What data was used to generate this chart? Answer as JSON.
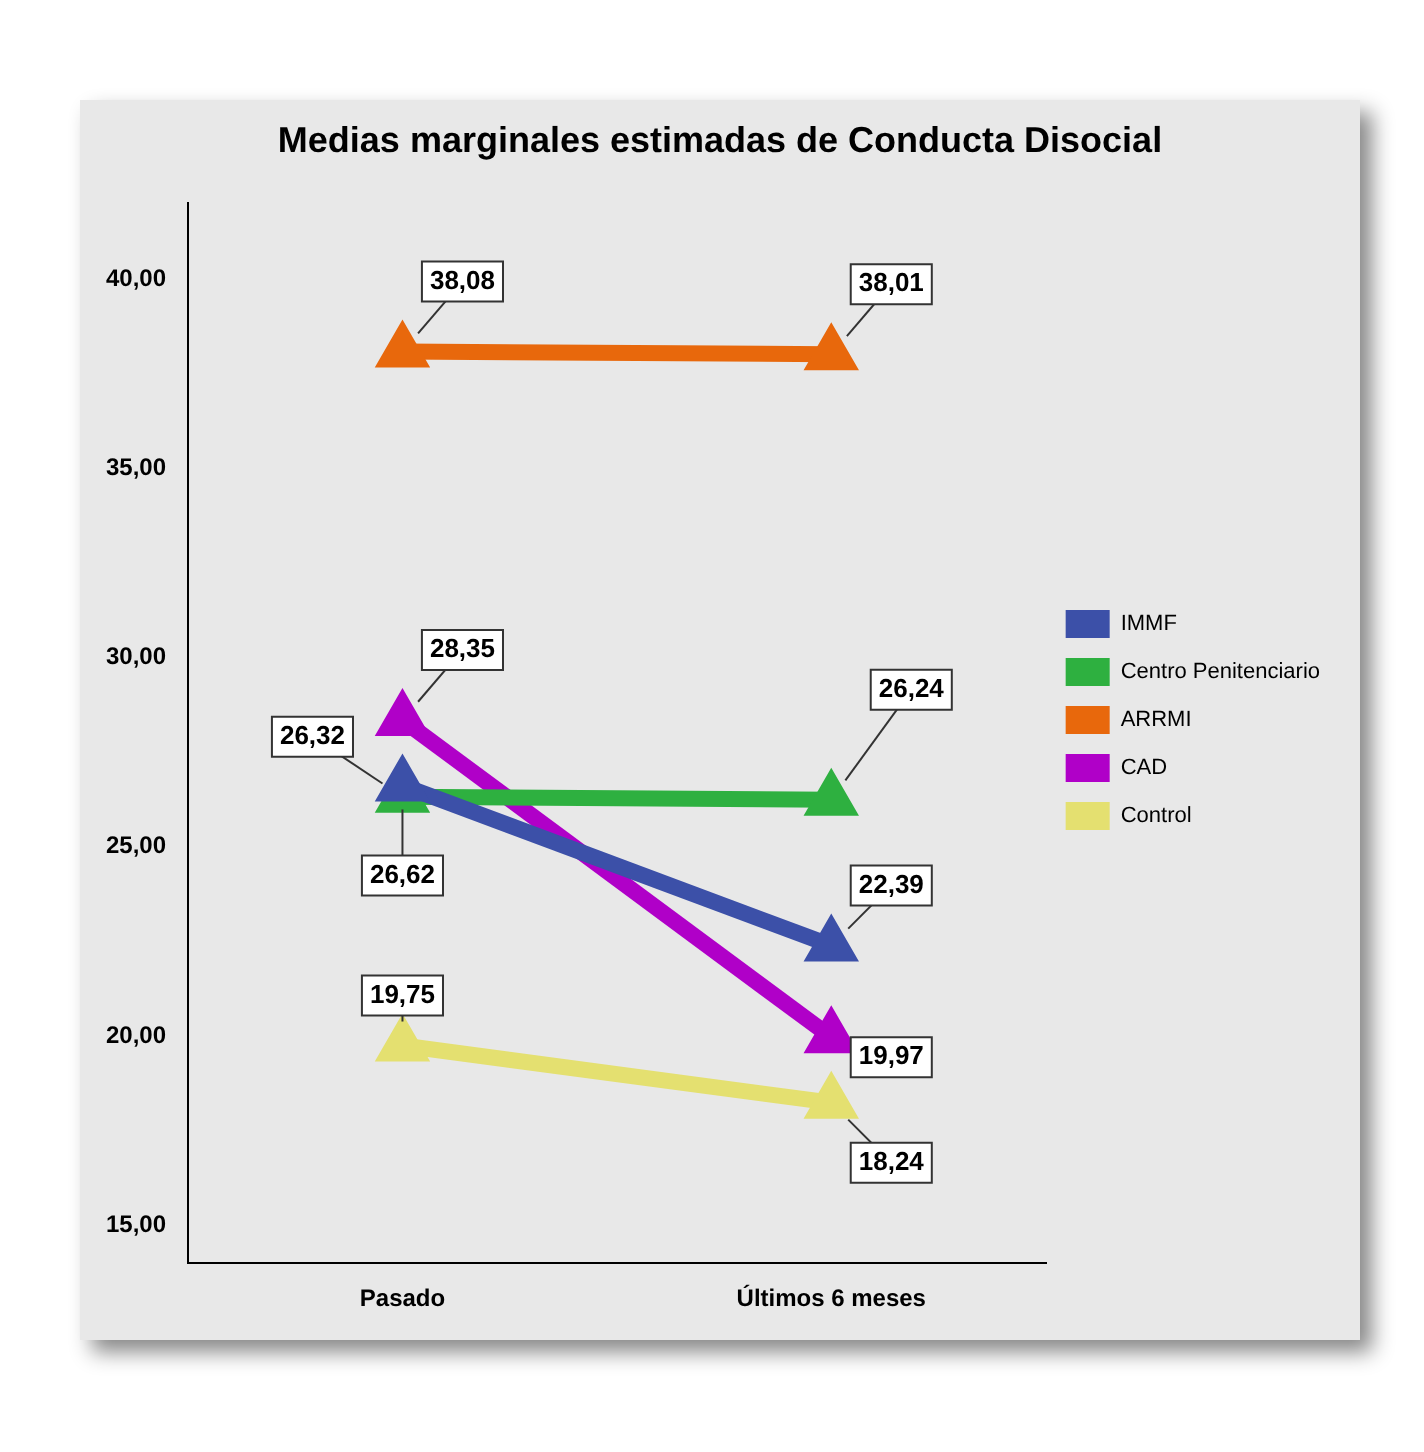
{
  "chart_data": {
    "type": "line",
    "title": "Medias marginales estimadas de Conducta Disocial",
    "categories": [
      "Pasado",
      "Últimos 6 meses"
    ],
    "series": [
      {
        "name": "IMMF",
        "color": "#3c50a8",
        "values": [
          26.62,
          22.39
        ],
        "value_labels": [
          "26,62",
          "22,39"
        ]
      },
      {
        "name": "Centro Penitenciario",
        "color": "#2eb040",
        "values": [
          26.32,
          26.24
        ],
        "value_labels": [
          "26,32",
          "26,24"
        ]
      },
      {
        "name": "ARRMI",
        "color": "#e8680c",
        "values": [
          38.08,
          38.01
        ],
        "value_labels": [
          "38,08",
          "38,01"
        ]
      },
      {
        "name": "CAD",
        "color": "#b000c8",
        "values": [
          28.35,
          19.97
        ],
        "value_labels": [
          "28,35",
          "19,97"
        ]
      },
      {
        "name": "Control",
        "color": "#e4e070",
        "values": [
          19.75,
          18.24
        ],
        "value_labels": [
          "19,75",
          "18,24"
        ]
      }
    ],
    "ylim": [
      14,
      42
    ],
    "yticks": [
      {
        "value": 15,
        "label": "15,00"
      },
      {
        "value": 20,
        "label": "20,00"
      },
      {
        "value": 25,
        "label": "25,00"
      },
      {
        "value": 30,
        "label": "30,00"
      },
      {
        "value": 35,
        "label": "35,00"
      },
      {
        "value": 40,
        "label": "40,00"
      }
    ],
    "grid": false,
    "legend": "right",
    "marker": "triangle"
  }
}
